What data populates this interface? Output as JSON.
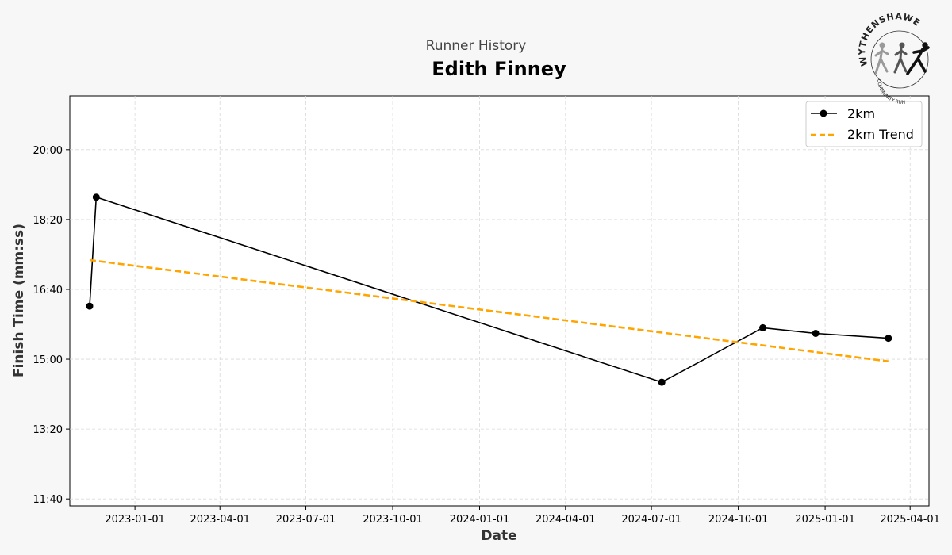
{
  "header": {
    "subtitle": "Runner History",
    "title": "Edith Finney"
  },
  "logo": {
    "name": "WYTHENSHAWE",
    "tagline": "COMMUNITY RUN"
  },
  "chart_data": {
    "type": "line",
    "xlabel": "Date",
    "ylabel": "Finish Time (mm:ss)",
    "x_ticks": [
      "2023-01-01",
      "2023-04-01",
      "2023-07-01",
      "2023-10-01",
      "2024-01-01",
      "2024-04-01",
      "2024-07-01",
      "2024-10-01",
      "2025-01-01",
      "2025-04-01"
    ],
    "y_ticks": [
      "11:40",
      "13:20",
      "15:00",
      "16:40",
      "18:20",
      "20:00"
    ],
    "y_tick_seconds": [
      700,
      800,
      900,
      1000,
      1100,
      1200
    ],
    "xlim": [
      "2022-10-24",
      "2025-04-21"
    ],
    "ylim_seconds": [
      690,
      1277
    ],
    "grid": true,
    "legend_position": "top-right",
    "series": [
      {
        "name": "2km",
        "style": "solid-marker",
        "color": "#000000",
        "points": [
          {
            "date": "2022-11-14",
            "seconds": 976
          },
          {
            "date": "2022-11-21",
            "seconds": 1132
          },
          {
            "date": "2024-07-12",
            "seconds": 867
          },
          {
            "date": "2024-10-27",
            "seconds": 945
          },
          {
            "date": "2024-12-22",
            "seconds": 937
          },
          {
            "date": "2025-03-09",
            "seconds": 930
          }
        ]
      },
      {
        "name": "2km Trend",
        "style": "dashed",
        "color": "#FFA500",
        "points": [
          {
            "date": "2022-11-14",
            "seconds": 1042
          },
          {
            "date": "2025-03-09",
            "seconds": 897
          }
        ]
      }
    ]
  }
}
